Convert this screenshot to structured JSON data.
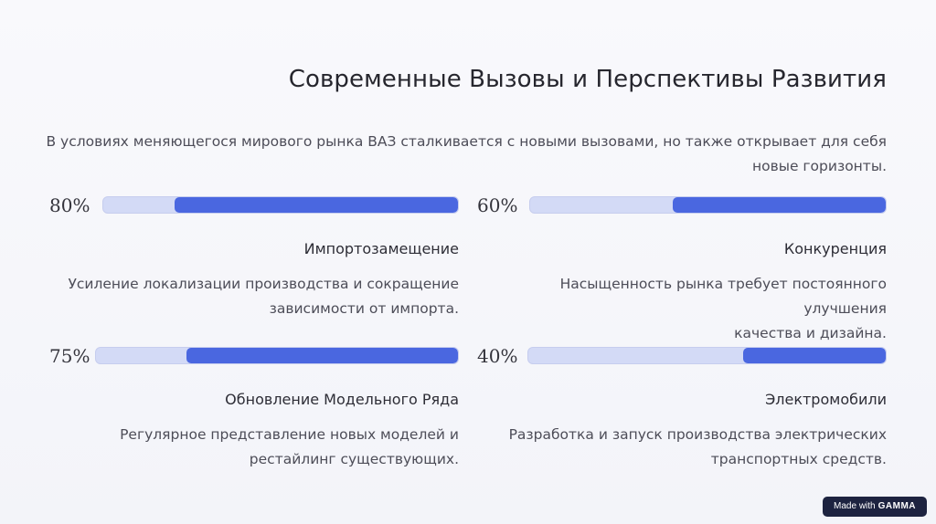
{
  "slide": {
    "title": "Современные Вызовы и Перспективы Развития",
    "intro_line1": "В условиях меняющегося мирового рынка ВАЗ сталкивается с новыми вызовами, но также открывает для себя",
    "intro_line2": "новые горизонты."
  },
  "cards": [
    {
      "percent_label": "80%",
      "progress": 0.8,
      "title": "Импортозамещение",
      "desc_line1": "Усиление локализации производства и сокращение",
      "desc_line2": "зависимости от импорта."
    },
    {
      "percent_label": "60%",
      "progress": 0.6,
      "title": "Конкуренция",
      "desc_line1": "Насыщенность рынка требует постоянного улучшения",
      "desc_line2": "качества и дизайна."
    },
    {
      "percent_label": "75%",
      "progress": 0.75,
      "title": "Обновление Модельного Ряда",
      "desc_line1": "Регулярное представление новых моделей и",
      "desc_line2": "рестайлинг существующих."
    },
    {
      "percent_label": "40%",
      "progress": 0.4,
      "title": "Электромобили",
      "desc_line1": "Разработка и запуск производства электрических",
      "desc_line2": "транспортных средств."
    }
  ],
  "badge": {
    "prefix": "Made with",
    "brand": "GAMMA"
  },
  "colors": {
    "bar_fill": "#4a67e0",
    "bar_track": "#d3daf6",
    "badge_bg": "#1d2340"
  }
}
